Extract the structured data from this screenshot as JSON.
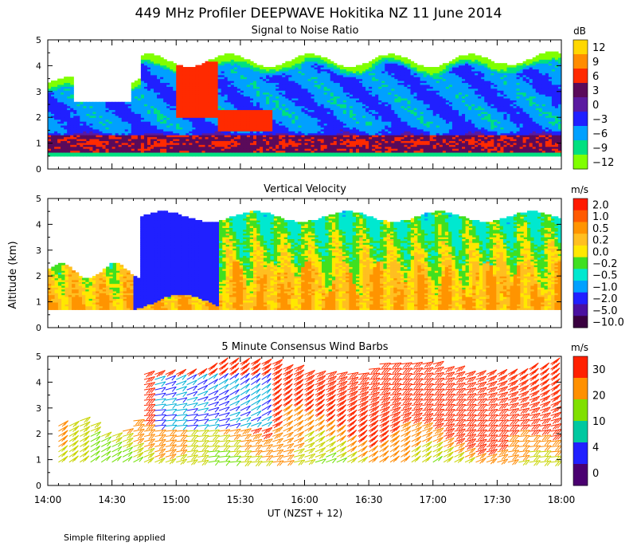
{
  "title": "449 MHz Profiler DEEPWAVE Hokitika NZ 11 June 2014",
  "ylabel": "Altitude (km)",
  "xlabel": "UT  (NZST + 12)",
  "note": "Simple filtering applied",
  "x_ticks": [
    "14:00",
    "14:30",
    "15:00",
    "15:30",
    "16:00",
    "16:30",
    "17:00",
    "17:30",
    "18:00"
  ],
  "chart_data": [
    {
      "type": "heatmap",
      "title": "Signal to Noise Ratio",
      "x_range": [
        "14:00",
        "18:00"
      ],
      "ylim": [
        0,
        5
      ],
      "y_ticks": [
        "0",
        "1",
        "2",
        "3",
        "4",
        "5"
      ],
      "colorbar_unit": "dB",
      "colorbar_labels": [
        "12",
        "9",
        "6",
        "3",
        "0",
        "−3",
        "−6",
        "−9",
        "−12"
      ],
      "colorbar_colors": [
        "#ffd700",
        "#ff8c00",
        "#ff2a00",
        "#5a0a5a",
        "#5a1aa0",
        "#2020ff",
        "#00a0ff",
        "#00e080",
        "#80ff00"
      ],
      "features": [
        {
          "name": "near-surface layer",
          "x_start": "14:00",
          "x_end": "18:00",
          "y_bottom": 0.6,
          "y_top": 1.3,
          "value_db": 5
        },
        {
          "name": "enhanced layer",
          "x_start": "15:00",
          "x_end": "15:20",
          "y_bottom": 2.0,
          "y_top": 4.2,
          "value_db": 7
        },
        {
          "name": "enhanced layer",
          "x_start": "15:20",
          "x_end": "15:45",
          "y_bottom": 1.5,
          "y_top": 2.3,
          "value_db": 7
        },
        {
          "name": "echo top",
          "x_start": "14:00",
          "x_end": "18:00",
          "y_top_approx": 4.3
        }
      ]
    },
    {
      "type": "heatmap",
      "title": "Vertical Velocity",
      "x_range": [
        "14:00",
        "18:00"
      ],
      "ylim": [
        0,
        5
      ],
      "y_ticks": [
        "0",
        "1",
        "2",
        "3",
        "4",
        "5"
      ],
      "colorbar_unit": "m/s",
      "colorbar_labels": [
        "2.0",
        "1.0",
        "0.5",
        "0.2",
        "0.0",
        "−0.2",
        "−0.5",
        "−1.0",
        "−2.0",
        "−5.0",
        "−10.0"
      ],
      "colorbar_colors": [
        "#ff1a00",
        "#ff5a00",
        "#ff9400",
        "#ffbf20",
        "#ffe800",
        "#40e020",
        "#00e8d0",
        "#00a0ff",
        "#2020ff",
        "#4a10a0",
        "#3a0040"
      ],
      "features": [
        {
          "name": "downdraft region",
          "x_start": "14:40",
          "x_end": "15:20",
          "y_bottom": 1.0,
          "y_top": 4.5,
          "value_ms": -1.5
        },
        {
          "name": "updraft plumes",
          "x_start": "15:20",
          "x_end": "18:00",
          "y_bottom": 0.7,
          "y_top": 2.5,
          "value_ms": 0.3
        }
      ]
    },
    {
      "type": "wind_barbs",
      "title": "5 Minute Consensus Wind Barbs",
      "interval_minutes": 5,
      "x_range": [
        "14:00",
        "18:00"
      ],
      "ylim": [
        0,
        5
      ],
      "y_ticks": [
        "0",
        "1",
        "2",
        "3",
        "4",
        "5"
      ],
      "colorbar_unit": "m/s",
      "colorbar_labels": [
        "30",
        "20",
        "10",
        "4",
        "0"
      ],
      "colorbar_colors": [
        "#ff2000",
        "#ff9000",
        "#80e000",
        "#00c8a0",
        "#2020ff",
        "#4a0070"
      ]
    }
  ]
}
